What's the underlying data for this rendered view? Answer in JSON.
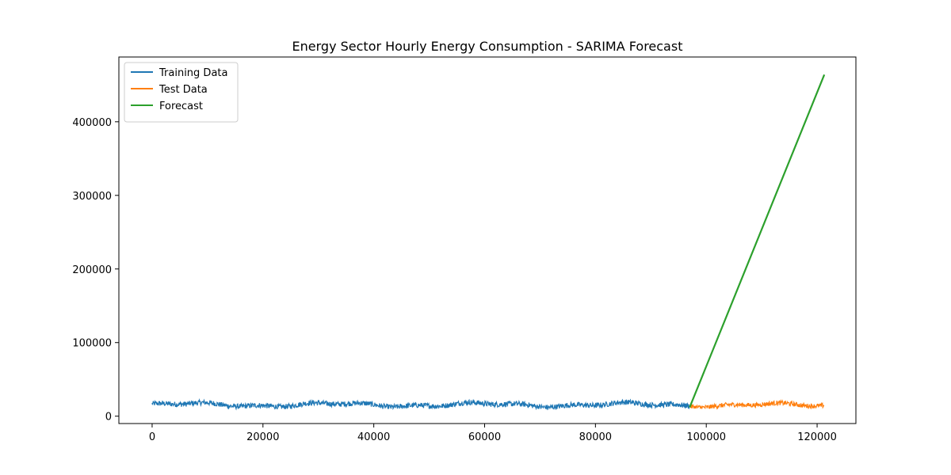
{
  "chart_data": {
    "type": "line",
    "title": "Energy Sector Hourly Energy Consumption - SARIMA Forecast",
    "xlabel": "",
    "ylabel": "",
    "xlim": [
      -6000,
      127000
    ],
    "ylim": [
      -10000,
      488000
    ],
    "xticks": [
      0,
      20000,
      40000,
      60000,
      80000,
      100000,
      120000
    ],
    "xtick_labels": [
      "0",
      "20000",
      "40000",
      "60000",
      "80000",
      "100000",
      "120000"
    ],
    "yticks": [
      0,
      100000,
      200000,
      300000,
      400000
    ],
    "ytick_labels": [
      "0",
      "100000",
      "200000",
      "300000",
      "400000"
    ],
    "grid": false,
    "legend_position": "upper-left",
    "series": [
      {
        "name": "Training Data",
        "color": "#1f77b4",
        "x_range": [
          0,
          97000
        ],
        "base": 15500,
        "amplitude": 4000,
        "noise_band": [
          10000,
          25500
        ]
      },
      {
        "name": "Test Data",
        "color": "#ff7f0e",
        "x_range": [
          97000,
          121300
        ],
        "base": 15000,
        "amplitude": 3500,
        "noise_band": [
          10500,
          22500
        ]
      },
      {
        "name": "Forecast",
        "color": "#2ca02c",
        "x": [
          97000,
          121300
        ],
        "y": [
          12000,
          464000
        ]
      }
    ]
  }
}
